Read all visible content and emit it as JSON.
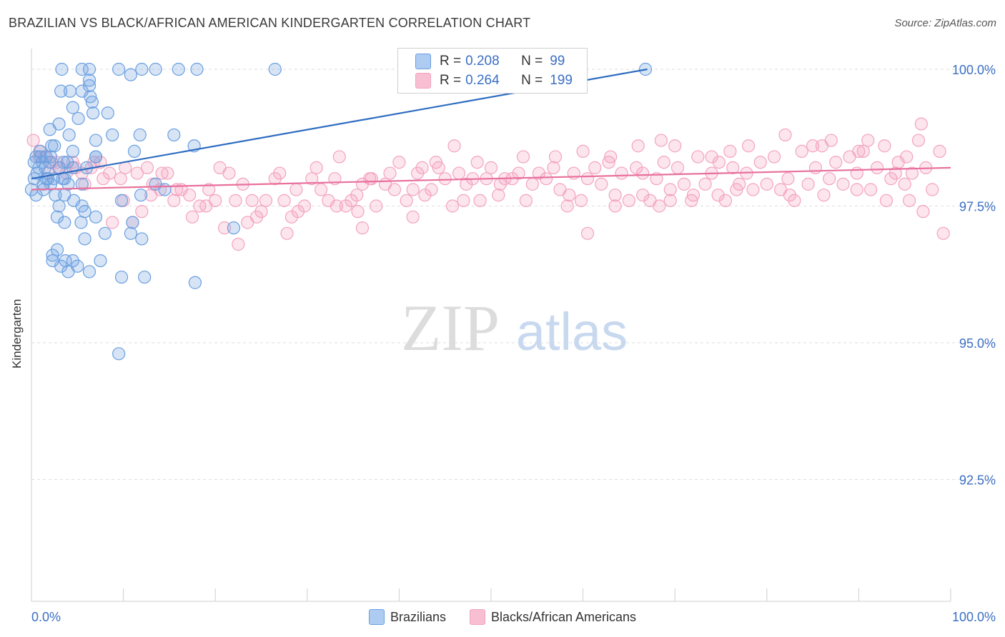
{
  "header": {
    "title": "BRAZILIAN VS BLACK/AFRICAN AMERICAN KINDERGARTEN CORRELATION CHART",
    "source": "Source: ZipAtlas.com"
  },
  "watermark": {
    "zip": "ZIP",
    "atlas": "atlas"
  },
  "stats_legend": [
    {
      "r_label": "R =",
      "r_value": "0.208",
      "n_label": "N =",
      "n_value": "99",
      "color": "#aecbf2"
    },
    {
      "r_label": "R =",
      "r_value": "0.264",
      "n_label": "N =",
      "n_value": "199",
      "color": "#f8bfd2"
    }
  ],
  "chart_data": {
    "type": "scatter",
    "title": "BRAZILIAN VS BLACK/AFRICAN AMERICAN KINDERGARTEN CORRELATION CHART",
    "xlabel": "",
    "ylabel": "Kindergarten",
    "xlim": [
      0,
      100
    ],
    "ylim": [
      90.3,
      100.3
    ],
    "x_tick_labels": [
      "0.0%",
      "100.0%"
    ],
    "y_ticks": [
      100.0,
      97.5,
      95.0,
      92.5
    ],
    "y_tick_labels": [
      "100.0%",
      "97.5%",
      "95.0%",
      "92.5%"
    ],
    "grid": true,
    "legend_position": "bottom",
    "series": [
      {
        "name": "Brazilians",
        "color": "#6a9fe0",
        "trend": {
          "x": [
            0,
            67
          ],
          "y": [
            98.0,
            100.0
          ],
          "color": "#2d6cc0"
        },
        "points": [
          [
            3.3,
            100.0
          ],
          [
            5.5,
            100.0
          ],
          [
            6.3,
            100.0
          ],
          [
            9.5,
            100.0
          ],
          [
            12.0,
            100.0
          ],
          [
            13.5,
            100.0
          ],
          [
            16.0,
            100.0
          ],
          [
            18.0,
            100.0
          ],
          [
            26.5,
            100.0
          ],
          [
            66.8,
            100.0
          ],
          [
            10.8,
            99.9
          ],
          [
            6.3,
            99.8
          ],
          [
            6.3,
            99.7
          ],
          [
            3.2,
            99.6
          ],
          [
            4.2,
            99.6
          ],
          [
            6.4,
            99.5
          ],
          [
            6.6,
            99.4
          ],
          [
            4.5,
            99.3
          ],
          [
            8.3,
            99.2
          ],
          [
            5.1,
            99.1
          ],
          [
            3.0,
            99.0
          ],
          [
            2.0,
            98.9
          ],
          [
            4.1,
            98.8
          ],
          [
            8.8,
            98.8
          ],
          [
            11.8,
            98.8
          ],
          [
            15.5,
            98.8
          ],
          [
            7.0,
            98.7
          ],
          [
            2.5,
            98.6
          ],
          [
            17.7,
            98.6
          ],
          [
            0.9,
            98.5
          ],
          [
            4.5,
            98.5
          ],
          [
            7.0,
            98.4
          ],
          [
            11.2,
            98.5
          ],
          [
            0.5,
            98.4
          ],
          [
            1.0,
            98.4
          ],
          [
            1.6,
            98.4
          ],
          [
            2.1,
            98.4
          ],
          [
            3.5,
            98.3
          ],
          [
            0.3,
            98.3
          ],
          [
            1.2,
            98.3
          ],
          [
            2.0,
            98.3
          ],
          [
            3.0,
            98.2
          ],
          [
            4.5,
            98.2
          ],
          [
            6.0,
            98.2
          ],
          [
            7.0,
            98.4
          ],
          [
            0.8,
            98.2
          ],
          [
            1.5,
            98.2
          ],
          [
            3.6,
            98.0
          ],
          [
            1.6,
            98.0
          ],
          [
            2.4,
            98.0
          ],
          [
            0.3,
            98.0
          ],
          [
            1.3,
            97.9
          ],
          [
            2.1,
            97.9
          ],
          [
            4.0,
            97.9
          ],
          [
            5.5,
            97.9
          ],
          [
            0.0,
            97.8
          ],
          [
            1.3,
            97.8
          ],
          [
            2.6,
            97.7
          ],
          [
            0.5,
            97.7
          ],
          [
            3.6,
            97.7
          ],
          [
            9.8,
            97.6
          ],
          [
            11.9,
            97.7
          ],
          [
            14.5,
            97.8
          ],
          [
            13.5,
            97.9
          ],
          [
            3.0,
            97.5
          ],
          [
            5.5,
            97.5
          ],
          [
            5.8,
            97.4
          ],
          [
            2.8,
            97.3
          ],
          [
            7.0,
            97.3
          ],
          [
            11.0,
            97.2
          ],
          [
            3.6,
            97.2
          ],
          [
            5.4,
            97.2
          ],
          [
            8.0,
            97.0
          ],
          [
            10.8,
            97.0
          ],
          [
            22.0,
            97.1
          ],
          [
            5.8,
            96.9
          ],
          [
            12.0,
            96.9
          ],
          [
            2.8,
            96.7
          ],
          [
            2.3,
            96.6
          ],
          [
            3.7,
            96.5
          ],
          [
            4.5,
            96.5
          ],
          [
            7.5,
            96.5
          ],
          [
            3.2,
            96.4
          ],
          [
            5.0,
            96.4
          ],
          [
            6.3,
            96.3
          ],
          [
            9.8,
            96.2
          ],
          [
            12.3,
            96.2
          ],
          [
            17.8,
            96.1
          ],
          [
            9.5,
            94.8
          ],
          [
            4.0,
            96.3
          ],
          [
            2.3,
            96.5
          ],
          [
            5.5,
            99.6
          ],
          [
            4.6,
            97.6
          ],
          [
            3.4,
            98.0
          ],
          [
            6.7,
            99.2
          ],
          [
            2.2,
            98.6
          ],
          [
            1.8,
            98.0
          ],
          [
            0.6,
            98.1
          ],
          [
            3.9,
            98.3
          ]
        ]
      },
      {
        "name": "Blacks/African Americans",
        "color": "#f3a3bf",
        "trend": {
          "x": [
            0,
            100
          ],
          "y": [
            97.8,
            98.2
          ],
          "color": "#e8709c"
        },
        "points": [
          [
            0.2,
            98.7
          ],
          [
            1.0,
            98.5
          ],
          [
            1.4,
            98.4
          ],
          [
            2.2,
            98.3
          ],
          [
            3.1,
            98.2
          ],
          [
            4.5,
            98.3
          ],
          [
            5.5,
            98.1
          ],
          [
            6.5,
            98.2
          ],
          [
            7.5,
            98.3
          ],
          [
            8.5,
            98.1
          ],
          [
            9.7,
            98.0
          ],
          [
            10.2,
            98.2
          ],
          [
            11.5,
            98.1
          ],
          [
            12.6,
            98.2
          ],
          [
            13.2,
            97.9
          ],
          [
            14.0,
            97.8
          ],
          [
            14.8,
            98.1
          ],
          [
            15.5,
            97.6
          ],
          [
            16.3,
            97.8
          ],
          [
            17.2,
            97.7
          ],
          [
            18.3,
            97.5
          ],
          [
            19.3,
            97.8
          ],
          [
            20.0,
            97.6
          ],
          [
            20.5,
            98.2
          ],
          [
            21.5,
            98.1
          ],
          [
            22.2,
            97.6
          ],
          [
            23.0,
            97.9
          ],
          [
            24.0,
            97.6
          ],
          [
            24.5,
            97.3
          ],
          [
            25.5,
            97.6
          ],
          [
            26.5,
            98.0
          ],
          [
            27.5,
            97.6
          ],
          [
            28.3,
            97.3
          ],
          [
            28.8,
            97.8
          ],
          [
            29.7,
            97.5
          ],
          [
            30.5,
            98.0
          ],
          [
            31.5,
            97.8
          ],
          [
            32.3,
            97.6
          ],
          [
            33.0,
            98.0
          ],
          [
            34.2,
            97.5
          ],
          [
            34.8,
            97.6
          ],
          [
            35.4,
            97.7
          ],
          [
            36.0,
            97.9
          ],
          [
            36.8,
            98.0
          ],
          [
            37.5,
            97.5
          ],
          [
            38.5,
            97.9
          ],
          [
            39.5,
            97.8
          ],
          [
            40.0,
            98.3
          ],
          [
            40.8,
            97.6
          ],
          [
            41.5,
            97.8
          ],
          [
            42.0,
            98.1
          ],
          [
            42.8,
            97.7
          ],
          [
            43.5,
            97.8
          ],
          [
            44.3,
            98.2
          ],
          [
            45.0,
            98.0
          ],
          [
            45.8,
            97.5
          ],
          [
            46.5,
            98.1
          ],
          [
            47.3,
            97.9
          ],
          [
            48.0,
            98.0
          ],
          [
            48.8,
            97.6
          ],
          [
            49.5,
            98.0
          ],
          [
            50.0,
            98.2
          ],
          [
            50.8,
            97.7
          ],
          [
            51.5,
            98.0
          ],
          [
            52.3,
            98.0
          ],
          [
            53.0,
            98.1
          ],
          [
            53.8,
            97.6
          ],
          [
            54.5,
            97.9
          ],
          [
            55.2,
            98.1
          ],
          [
            56.0,
            98.0
          ],
          [
            56.8,
            98.2
          ],
          [
            57.5,
            97.8
          ],
          [
            58.3,
            97.5
          ],
          [
            59.0,
            98.1
          ],
          [
            59.8,
            97.6
          ],
          [
            60.5,
            98.0
          ],
          [
            61.3,
            98.2
          ],
          [
            62.0,
            97.9
          ],
          [
            62.8,
            98.3
          ],
          [
            63.5,
            97.7
          ],
          [
            64.2,
            98.1
          ],
          [
            65.0,
            97.6
          ],
          [
            65.8,
            98.2
          ],
          [
            66.5,
            98.1
          ],
          [
            67.3,
            97.6
          ],
          [
            68.0,
            98.0
          ],
          [
            68.8,
            98.3
          ],
          [
            69.5,
            97.8
          ],
          [
            70.3,
            98.2
          ],
          [
            71.0,
            97.9
          ],
          [
            71.8,
            97.6
          ],
          [
            72.5,
            98.4
          ],
          [
            73.3,
            97.9
          ],
          [
            74.0,
            98.1
          ],
          [
            74.8,
            98.3
          ],
          [
            75.5,
            97.6
          ],
          [
            76.3,
            98.2
          ],
          [
            77.0,
            97.9
          ],
          [
            77.8,
            98.1
          ],
          [
            78.5,
            97.8
          ],
          [
            79.3,
            98.3
          ],
          [
            80.0,
            97.9
          ],
          [
            80.8,
            98.4
          ],
          [
            81.5,
            97.8
          ],
          [
            82.3,
            98.0
          ],
          [
            83.0,
            97.6
          ],
          [
            83.8,
            98.5
          ],
          [
            84.5,
            97.9
          ],
          [
            85.3,
            98.2
          ],
          [
            86.0,
            98.6
          ],
          [
            86.8,
            98.0
          ],
          [
            87.5,
            98.3
          ],
          [
            88.3,
            97.9
          ],
          [
            89.0,
            98.4
          ],
          [
            89.8,
            98.1
          ],
          [
            90.5,
            98.5
          ],
          [
            91.3,
            97.8
          ],
          [
            92.0,
            98.2
          ],
          [
            92.8,
            98.6
          ],
          [
            93.5,
            98.0
          ],
          [
            94.3,
            98.3
          ],
          [
            95.0,
            97.9
          ],
          [
            95.8,
            98.1
          ],
          [
            96.5,
            98.7
          ],
          [
            97.3,
            98.2
          ],
          [
            98.0,
            97.8
          ],
          [
            98.8,
            98.5
          ],
          [
            99.2,
            97.0
          ],
          [
            97.0,
            97.4
          ],
          [
            96.8,
            99.0
          ],
          [
            95.2,
            98.4
          ],
          [
            94.0,
            98.1
          ],
          [
            91.0,
            98.7
          ],
          [
            90.0,
            98.5
          ],
          [
            87.0,
            98.7
          ],
          [
            85.0,
            98.6
          ],
          [
            82.0,
            98.8
          ],
          [
            78.0,
            98.6
          ],
          [
            76.0,
            98.5
          ],
          [
            74.0,
            98.4
          ],
          [
            70.0,
            98.6
          ],
          [
            68.5,
            98.7
          ],
          [
            66.0,
            98.6
          ],
          [
            63.0,
            98.4
          ],
          [
            60.0,
            98.5
          ],
          [
            57.0,
            98.4
          ],
          [
            53.5,
            98.4
          ],
          [
            51.0,
            97.9
          ],
          [
            48.5,
            98.3
          ],
          [
            46.0,
            98.6
          ],
          [
            44.0,
            98.3
          ],
          [
            42.5,
            98.2
          ],
          [
            39.0,
            98.1
          ],
          [
            37.0,
            98.0
          ],
          [
            35.5,
            97.4
          ],
          [
            33.5,
            98.4
          ],
          [
            31.0,
            98.2
          ],
          [
            29.0,
            97.4
          ],
          [
            27.0,
            98.1
          ],
          [
            25.0,
            97.4
          ],
          [
            23.5,
            97.2
          ],
          [
            22.5,
            96.8
          ],
          [
            21.0,
            97.1
          ],
          [
            19.0,
            97.5
          ],
          [
            17.5,
            97.3
          ],
          [
            15.8,
            97.8
          ],
          [
            14.2,
            98.1
          ],
          [
            13.0,
            97.7
          ],
          [
            12.0,
            97.4
          ],
          [
            11.0,
            97.2
          ],
          [
            10.0,
            97.6
          ],
          [
            8.8,
            97.2
          ],
          [
            7.8,
            98.0
          ],
          [
            6.8,
            98.3
          ],
          [
            5.8,
            97.9
          ],
          [
            4.8,
            98.2
          ],
          [
            3.8,
            98.1
          ],
          [
            2.8,
            98.3
          ],
          [
            1.8,
            98.1
          ],
          [
            0.8,
            98.4
          ],
          [
            27.8,
            97.0
          ],
          [
            33.2,
            97.5
          ],
          [
            36.0,
            97.1
          ],
          [
            41.5,
            97.3
          ],
          [
            47.0,
            97.6
          ],
          [
            58.5,
            97.7
          ],
          [
            60.5,
            97.0
          ],
          [
            63.5,
            97.5
          ],
          [
            66.5,
            97.7
          ],
          [
            68.3,
            97.5
          ],
          [
            69.5,
            97.6
          ],
          [
            72.0,
            97.7
          ],
          [
            74.7,
            97.7
          ],
          [
            76.7,
            97.8
          ],
          [
            82.5,
            97.7
          ],
          [
            86.2,
            97.7
          ],
          [
            89.8,
            97.8
          ],
          [
            93.0,
            97.6
          ],
          [
            95.5,
            97.6
          ]
        ]
      }
    ]
  }
}
